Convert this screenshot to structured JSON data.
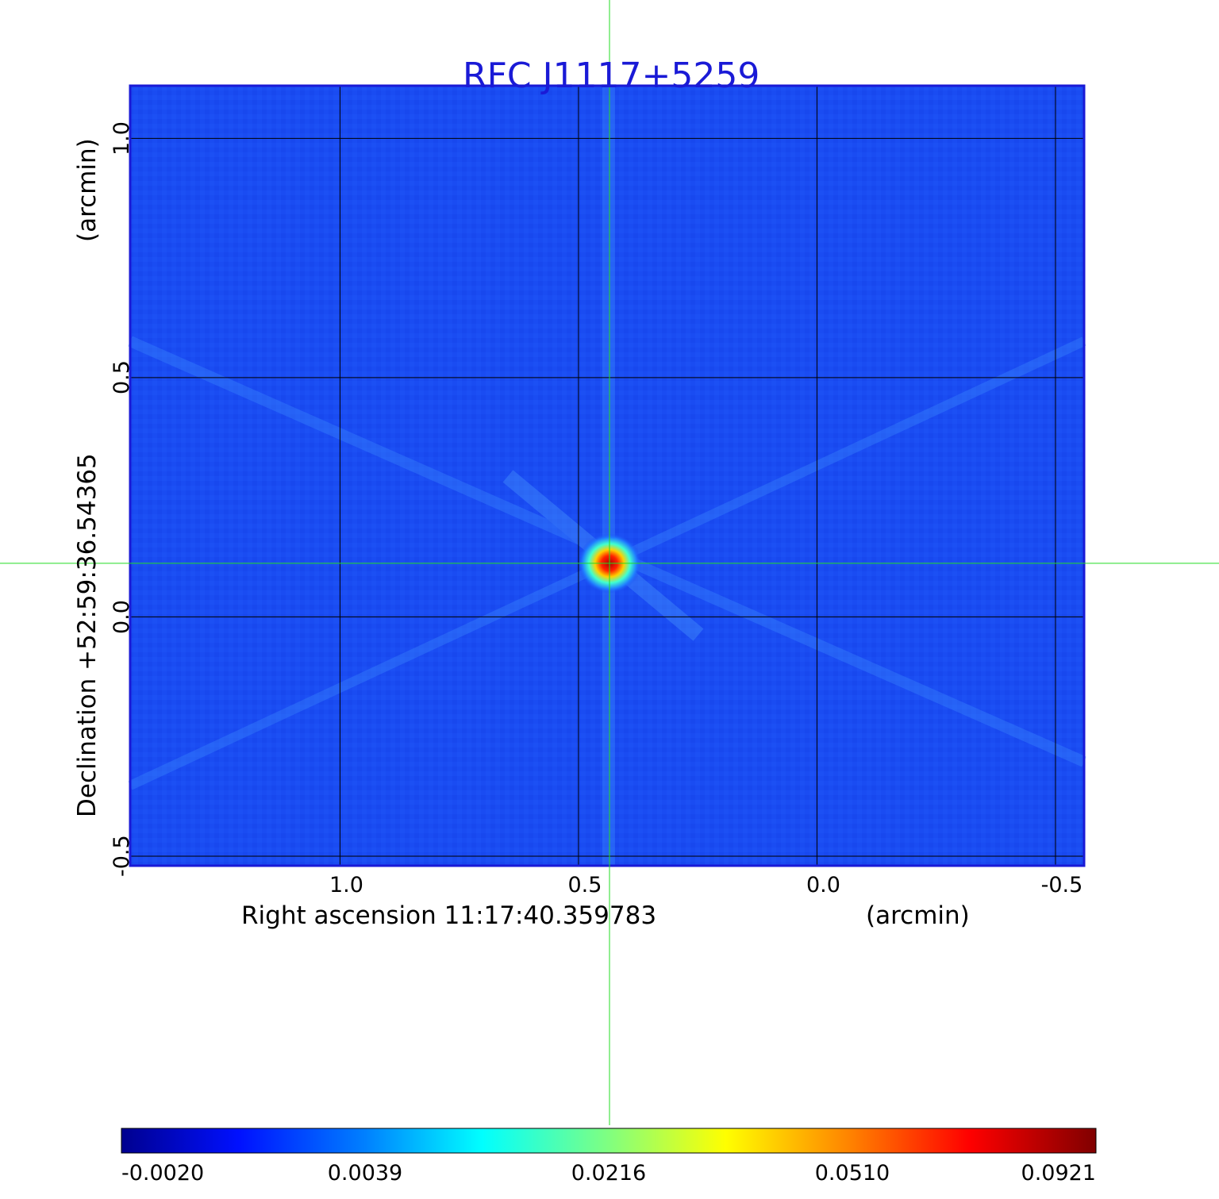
{
  "chart_data": {
    "type": "heatmap",
    "title": "RFC J1117+5259",
    "xlabel": "Right ascension  11:17:40.359783",
    "xunit": "(arcmin)",
    "ylabel": "Declination  +52:59:36.54365",
    "yunit": "(arcmin)",
    "x_ticks": [
      "1.0",
      "0.5",
      "0.0",
      "-0.5"
    ],
    "x_tick_values": [
      1.0,
      0.5,
      0.0,
      -0.5
    ],
    "y_ticks": [
      "1.0",
      "0.5",
      "0.0",
      "-0.5"
    ],
    "y_tick_values": [
      1.0,
      0.5,
      0.0,
      -0.5
    ],
    "xlim": [
      1.44,
      -0.56
    ],
    "ylim": [
      -0.52,
      1.11
    ],
    "grid": true,
    "crosshair": {
      "ra_offset": 0.435,
      "dec_offset": 0.112
    },
    "source": {
      "ra_offset": 0.435,
      "dec_offset": 0.112,
      "peak": 0.0921
    },
    "colormap": "jet",
    "colorbar_ticks": [
      "-0.0020",
      "0.0039",
      "0.0216",
      "0.0510",
      "0.0921"
    ],
    "colorbar_values": [
      -0.002,
      0.0039,
      0.0216,
      0.051,
      0.0921
    ],
    "colors": {
      "background_map": "#1a4cf2",
      "title": "#1a1ad6",
      "crosshair": "#22dd22",
      "grid": "#000000",
      "frame": "#1a1ad6"
    }
  }
}
